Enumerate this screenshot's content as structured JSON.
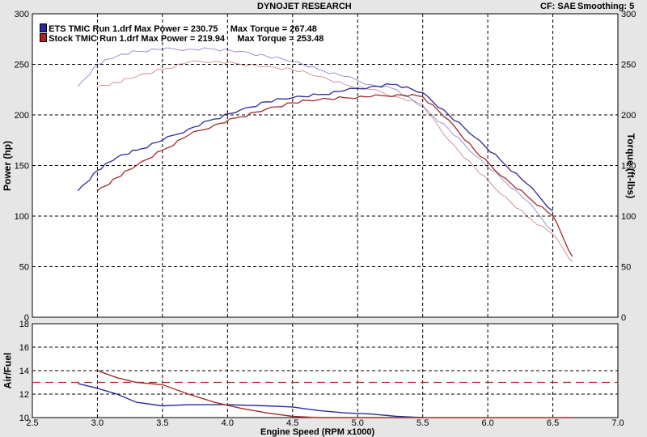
{
  "header": {
    "title": "DYNOJET RESEARCH",
    "cf_label": "CF: SAE",
    "smoothing_label": "Smoothing: 5"
  },
  "legend": [
    {
      "text": "ETS TMIC Run 1.drf Max Power = 230.75     Max Torque = 267.48",
      "color": "#2a2a9e"
    },
    {
      "text": "Stock TMIC Run 1.drf Max Power = 219.94     Max Torque = 253.48",
      "color": "#b22222"
    }
  ],
  "colors": {
    "ets": "#2a2a9e",
    "stock": "#a52a2a"
  },
  "chart_data": [
    {
      "type": "line",
      "xlabel": "Engine Speed (RPM x1000)",
      "ylabel": "Power (hp)",
      "y2label": "Torque (ft-lbs)",
      "xlim": [
        2.5,
        7.0
      ],
      "ylim": [
        0,
        300
      ],
      "xticks": [
        "2.5",
        "3.0",
        "3.5",
        "4.0",
        "4.5",
        "5.0",
        "5.5",
        "6.0",
        "6.5",
        "7.0"
      ],
      "yticks": [
        "0",
        "50",
        "100",
        "150",
        "200",
        "250",
        "300"
      ],
      "grid": true,
      "series": [
        {
          "name": "ETS TMIC Run 1.drf Power",
          "kind": "power",
          "run": "ets",
          "x": [
            2.85,
            3.0,
            3.15,
            3.3,
            3.5,
            3.7,
            3.9,
            4.1,
            4.3,
            4.5,
            4.7,
            4.9,
            5.1,
            5.3,
            5.5,
            5.7,
            5.9,
            6.1,
            6.3,
            6.5
          ],
          "y": [
            125,
            145,
            158,
            165,
            175,
            186,
            196,
            205,
            213,
            217,
            220,
            224,
            228,
            230,
            222,
            200,
            178,
            155,
            132,
            105
          ]
        },
        {
          "name": "ETS TMIC Run 1.drf Torque",
          "kind": "torque",
          "run": "ets",
          "x": [
            2.85,
            3.0,
            3.15,
            3.3,
            3.5,
            3.7,
            3.9,
            4.1,
            4.3,
            4.5,
            4.7,
            4.9,
            5.1,
            5.3,
            5.5,
            5.7,
            5.9,
            6.1,
            6.3,
            6.5
          ],
          "y": [
            228,
            250,
            258,
            263,
            265,
            265,
            265,
            263,
            258,
            253,
            245,
            238,
            230,
            225,
            208,
            186,
            160,
            138,
            115,
            85
          ]
        },
        {
          "name": "Stock TMIC Run 1.drf Power",
          "kind": "power",
          "run": "stock",
          "x": [
            3.0,
            3.15,
            3.3,
            3.5,
            3.7,
            3.9,
            4.1,
            4.3,
            4.5,
            4.7,
            4.9,
            5.1,
            5.3,
            5.5,
            5.7,
            5.9,
            6.1,
            6.3,
            6.5,
            6.65
          ],
          "y": [
            125,
            138,
            150,
            165,
            180,
            190,
            198,
            206,
            212,
            215,
            217,
            218,
            220,
            218,
            195,
            165,
            140,
            120,
            100,
            60
          ]
        },
        {
          "name": "Stock TMIC Run 1.drf Torque",
          "kind": "torque",
          "run": "stock",
          "x": [
            3.0,
            3.15,
            3.3,
            3.5,
            3.7,
            3.9,
            4.1,
            4.3,
            4.5,
            4.7,
            4.9,
            5.1,
            5.3,
            5.5,
            5.7,
            5.9,
            6.1,
            6.3,
            6.5,
            6.65
          ],
          "y": [
            228,
            232,
            238,
            245,
            252,
            253,
            250,
            248,
            245,
            238,
            230,
            225,
            218,
            210,
            175,
            148,
            122,
            100,
            82,
            55
          ]
        }
      ]
    },
    {
      "type": "line",
      "xlabel": "Engine Speed (RPM x1000)",
      "ylabel": "Air/Fuel",
      "xlim": [
        2.5,
        7.0
      ],
      "ylim": [
        10,
        18
      ],
      "xticks": [
        "2.5",
        "3.0",
        "3.5",
        "4.0",
        "4.5",
        "5.0",
        "5.5",
        "6.0",
        "6.5",
        "7.0"
      ],
      "yticks": [
        "10",
        "12",
        "14",
        "16",
        "18"
      ],
      "reference_line": 13,
      "grid": true,
      "series": [
        {
          "name": "ETS TMIC Run 1.drf Air/Fuel",
          "run": "ets",
          "x": [
            2.85,
            3.0,
            3.15,
            3.3,
            3.5,
            3.7,
            4.0,
            4.3,
            4.5,
            4.7,
            4.9,
            5.1,
            5.3,
            5.5
          ],
          "y": [
            12.9,
            12.5,
            12.0,
            11.3,
            11.0,
            11.1,
            11.1,
            11.0,
            10.9,
            10.6,
            10.4,
            10.3,
            10.1,
            10.0
          ]
        },
        {
          "name": "Stock TMIC Run 1.drf Air/Fuel",
          "run": "stock",
          "x": [
            3.0,
            3.15,
            3.3,
            3.5,
            3.7,
            3.9,
            4.1,
            4.3,
            4.5,
            4.7,
            5.0,
            5.5,
            6.0,
            6.5,
            6.65
          ],
          "y": [
            14.0,
            13.4,
            13.0,
            12.8,
            12.0,
            11.3,
            10.8,
            10.4,
            10.1,
            10.0,
            10.0,
            10.0,
            10.0,
            10.0,
            10.0
          ]
        }
      ]
    }
  ]
}
